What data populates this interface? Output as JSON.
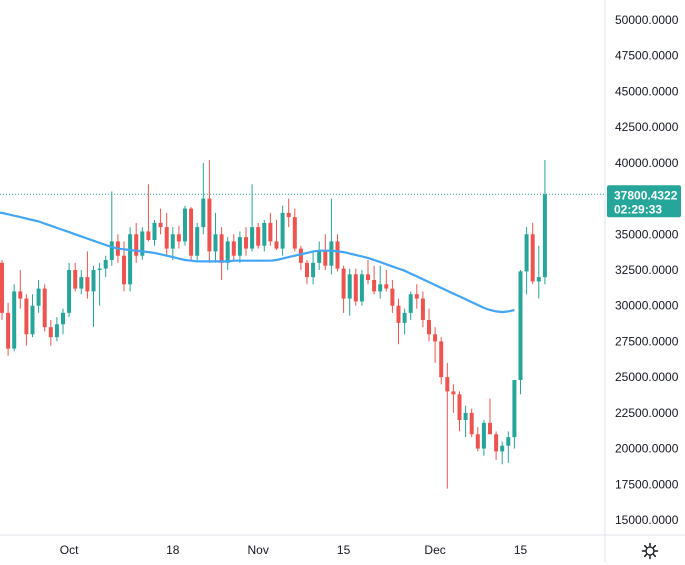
{
  "chart_data": {
    "type": "candlestick",
    "x_tick_labels": [
      "Oct",
      "18",
      "Nov",
      "15",
      "Dec",
      "15"
    ],
    "y_tick_labels": [
      "50000.0000",
      "47500.0000",
      "45000.0000",
      "42500.0000",
      "40000.0000",
      "35000.0000",
      "32500.0000",
      "30000.0000",
      "27500.0000",
      "25000.0000",
      "22500.0000",
      "20000.0000",
      "17500.0000",
      "15000.0000"
    ],
    "y_ticks": [
      50000,
      47500,
      45000,
      42500,
      40000,
      35000,
      32500,
      30000,
      27500,
      25000,
      22500,
      20000,
      17500,
      15000
    ],
    "ylim": [
      13500,
      51500
    ],
    "last_price": 37800.4322,
    "price_label": "37800.4322",
    "countdown": "02:29:33",
    "grid": false,
    "series": [
      {
        "type": "ohlc",
        "ohlc": [
          [
            33000,
            33200,
            29000,
            29500
          ],
          [
            29500,
            30200,
            26500,
            27000
          ],
          [
            27000,
            31500,
            26800,
            31000
          ],
          [
            31000,
            32500,
            29800,
            30500
          ],
          [
            30500,
            30800,
            27200,
            28000
          ],
          [
            28000,
            30800,
            27800,
            30000
          ],
          [
            30000,
            31800,
            29500,
            31200
          ],
          [
            31200,
            31500,
            28200,
            28500
          ],
          [
            28500,
            29000,
            27200,
            27800
          ],
          [
            27800,
            29200,
            27500,
            28700
          ],
          [
            28700,
            29800,
            28000,
            29500
          ],
          [
            29500,
            33000,
            29200,
            32500
          ],
          [
            32500,
            33000,
            31000,
            31200
          ],
          [
            31200,
            32500,
            30800,
            32000
          ],
          [
            32000,
            33800,
            30500,
            31000
          ],
          [
            31000,
            32800,
            28500,
            32500
          ],
          [
            32500,
            33000,
            30000,
            32600
          ],
          [
            32600,
            33500,
            32000,
            33200
          ],
          [
            33200,
            38000,
            32800,
            34500
          ],
          [
            34500,
            35000,
            33000,
            33500
          ],
          [
            33500,
            34500,
            31000,
            31500
          ],
          [
            31500,
            35500,
            31000,
            35000
          ],
          [
            35000,
            35800,
            33000,
            33500
          ],
          [
            33500,
            35500,
            33200,
            35200
          ],
          [
            35200,
            38500,
            34500,
            34600
          ],
          [
            34600,
            36000,
            34200,
            35800
          ],
          [
            35800,
            36800,
            35000,
            35500
          ],
          [
            35500,
            36500,
            33500,
            34000
          ],
          [
            34000,
            35500,
            33200,
            35000
          ],
          [
            35000,
            35600,
            34000,
            34500
          ],
          [
            34500,
            37000,
            34200,
            36800
          ],
          [
            36800,
            36900,
            33200,
            33500
          ],
          [
            33500,
            35800,
            33200,
            35500
          ],
          [
            35500,
            40000,
            35000,
            37500
          ],
          [
            37500,
            40200,
            33000,
            33800
          ],
          [
            33800,
            36500,
            33000,
            35000
          ],
          [
            35000,
            35500,
            31800,
            33000
          ],
          [
            33000,
            34800,
            32500,
            34500
          ],
          [
            34500,
            35000,
            33200,
            33500
          ],
          [
            33500,
            35200,
            33000,
            34800
          ],
          [
            34800,
            35500,
            33500,
            34000
          ],
          [
            34000,
            38500,
            33800,
            35500
          ],
          [
            35500,
            35800,
            34000,
            34200
          ],
          [
            34200,
            36000,
            33800,
            35800
          ],
          [
            35800,
            36500,
            34200,
            34500
          ],
          [
            34500,
            36000,
            33900,
            34000
          ],
          [
            34000,
            37000,
            33500,
            36500
          ],
          [
            36500,
            37500,
            35500,
            36200
          ],
          [
            36200,
            36800,
            33800,
            34000
          ],
          [
            34000,
            34200,
            32500,
            33000
          ],
          [
            33000,
            33200,
            31500,
            32000
          ],
          [
            32000,
            33800,
            31500,
            33000
          ],
          [
            33000,
            34500,
            32500,
            33800
          ],
          [
            33800,
            35000,
            32500,
            32800
          ],
          [
            32800,
            37500,
            32200,
            34500
          ],
          [
            34500,
            35000,
            32400,
            32600
          ],
          [
            32600,
            32800,
            29500,
            30500
          ],
          [
            30500,
            32600,
            29300,
            32200
          ],
          [
            32200,
            32600,
            30000,
            30300
          ],
          [
            30300,
            32500,
            30000,
            32200
          ],
          [
            32200,
            33200,
            31500,
            31800
          ],
          [
            31800,
            32800,
            30800,
            31000
          ],
          [
            31000,
            32800,
            30500,
            31500
          ],
          [
            31500,
            32500,
            31000,
            31200
          ],
          [
            31200,
            31800,
            29500,
            30000
          ],
          [
            30000,
            30500,
            27300,
            28800
          ],
          [
            28800,
            29800,
            28000,
            29500
          ],
          [
            29500,
            31000,
            29000,
            30800
          ],
          [
            30800,
            31500,
            29800,
            30500
          ],
          [
            30500,
            31000,
            28500,
            29000
          ],
          [
            29000,
            29800,
            27500,
            28000
          ],
          [
            28000,
            28500,
            26000,
            27500
          ],
          [
            27500,
            27800,
            24500,
            25000
          ],
          [
            25000,
            26000,
            17200,
            24000
          ],
          [
            24000,
            24500,
            22500,
            23800
          ],
          [
            23800,
            24000,
            21200,
            22000
          ],
          [
            22000,
            23000,
            20800,
            22500
          ],
          [
            22500,
            22800,
            20800,
            21000
          ],
          [
            21000,
            21500,
            19800,
            20000
          ],
          [
            20000,
            22000,
            19500,
            21800
          ],
          [
            21800,
            23500,
            21000,
            21000
          ],
          [
            21000,
            21200,
            19200,
            19800
          ],
          [
            19800,
            20500,
            18900,
            20200
          ],
          [
            20200,
            21200,
            19000,
            20800
          ],
          [
            20800,
            24800,
            20000,
            24800
          ],
          [
            24800,
            32500,
            23800,
            32400
          ],
          [
            32400,
            35500,
            30800,
            35000
          ],
          [
            35000,
            35800,
            31500,
            31700
          ],
          [
            31700,
            34200,
            30500,
            32000
          ],
          [
            32000,
            40200,
            31500,
            37800
          ]
        ]
      },
      {
        "type": "line",
        "color": "#42a5f5",
        "values": [
          36500,
          36400,
          36300,
          36200,
          36100,
          36000,
          35900,
          35750,
          35600,
          35450,
          35300,
          35150,
          35000,
          34850,
          34700,
          34550,
          34400,
          34250,
          34100,
          34000,
          33950,
          33900,
          33850,
          33800,
          33750,
          33700,
          33600,
          33500,
          33400,
          33300,
          33200,
          33150,
          33100,
          33100,
          33100,
          33100,
          33100,
          33100,
          33150,
          33150,
          33150,
          33150,
          33150,
          33150,
          33150,
          33200,
          33300,
          33400,
          33500,
          33600,
          33700,
          33800,
          33850,
          33850,
          33850,
          33800,
          33750,
          33650,
          33550,
          33450,
          33350,
          33200,
          33050,
          32900,
          32750,
          32600,
          32450,
          32250,
          32050,
          31850,
          31650,
          31450,
          31250,
          31050,
          30850,
          30650,
          30450,
          30250,
          30050,
          29850,
          29700,
          29600,
          29550,
          29600,
          29700
        ]
      }
    ],
    "colors": {
      "up": "#26a69a",
      "down": "#ef5350",
      "ma": "#42a5f5",
      "price_line": "#26a69a",
      "badge": "#26a69a",
      "axis_text": "#131722"
    }
  },
  "settings_icon": "gear-icon"
}
